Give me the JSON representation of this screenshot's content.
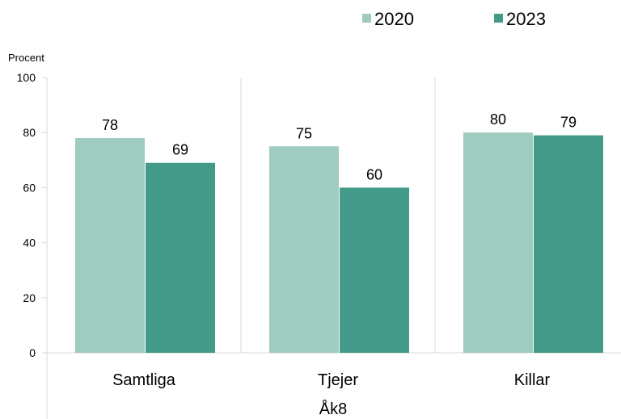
{
  "chart_data": {
    "type": "bar",
    "ylabel": "Procent",
    "xlabel": "Åk8",
    "ylim": [
      0,
      100
    ],
    "yticks": [
      0,
      20,
      40,
      60,
      80,
      100
    ],
    "categories": [
      "Samtliga",
      "Tjejer",
      "Killar"
    ],
    "series": [
      {
        "name": "2020",
        "color": "#9fcbc0",
        "values": [
          78,
          75,
          80
        ]
      },
      {
        "name": "2023",
        "color": "#449a88",
        "values": [
          69,
          60,
          79
        ]
      }
    ],
    "grid": "vertical category separators only",
    "legend_position": "top-right",
    "data_labels": true
  }
}
